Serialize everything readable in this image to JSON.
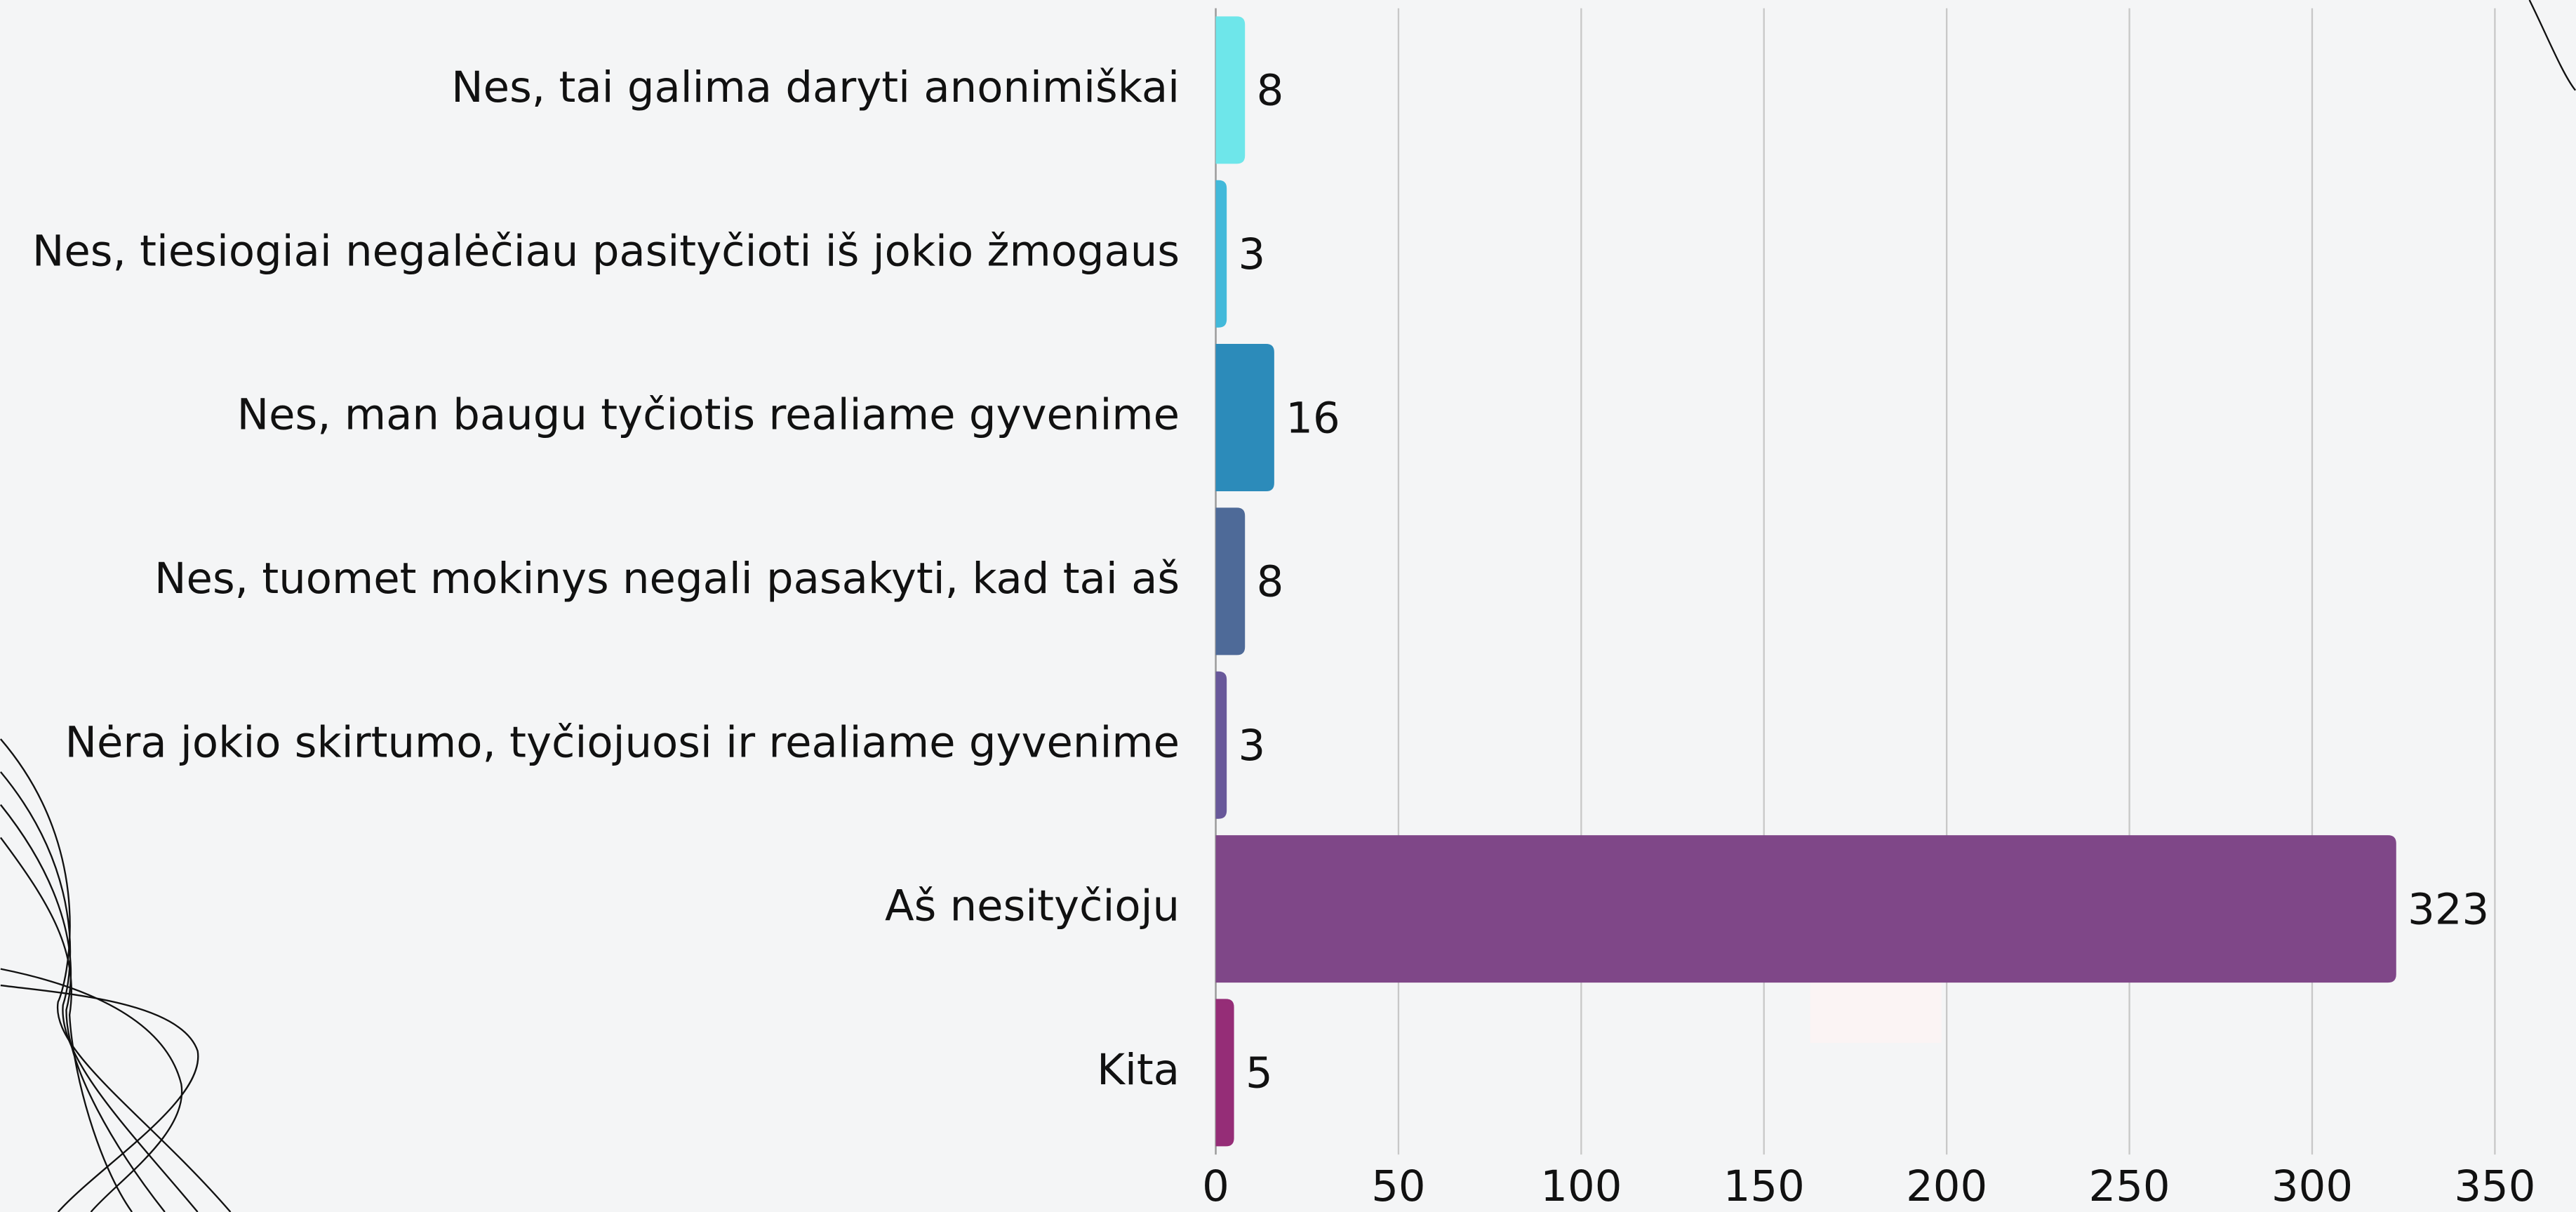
{
  "chart_data": {
    "type": "bar",
    "orientation": "horizontal",
    "categories": [
      "Nes, tai galima daryti anonimiškai",
      "Nes, tiesiogiai negalėčiau pasityčioti iš jokio žmogaus",
      "Nes, man baugu tyčiotis realiame gyvenime",
      "Nes, tuomet mokinys negali pasakyti, kad tai aš",
      "Nėra jokio skirtumo, tyčiojuosi ir realiame gyvenime",
      "Aš nesityčioju",
      "Kita"
    ],
    "values": [
      8,
      3,
      16,
      8,
      3,
      323,
      5
    ],
    "colors": [
      "#6ee6ea",
      "#42b9da",
      "#2c8bba",
      "#4e6a98",
      "#68589a",
      "#7f4788",
      "#952d77"
    ],
    "xlim": [
      0,
      370
    ],
    "xticks": [
      0,
      50,
      100,
      150,
      200,
      250,
      300,
      350
    ],
    "grid": true
  }
}
